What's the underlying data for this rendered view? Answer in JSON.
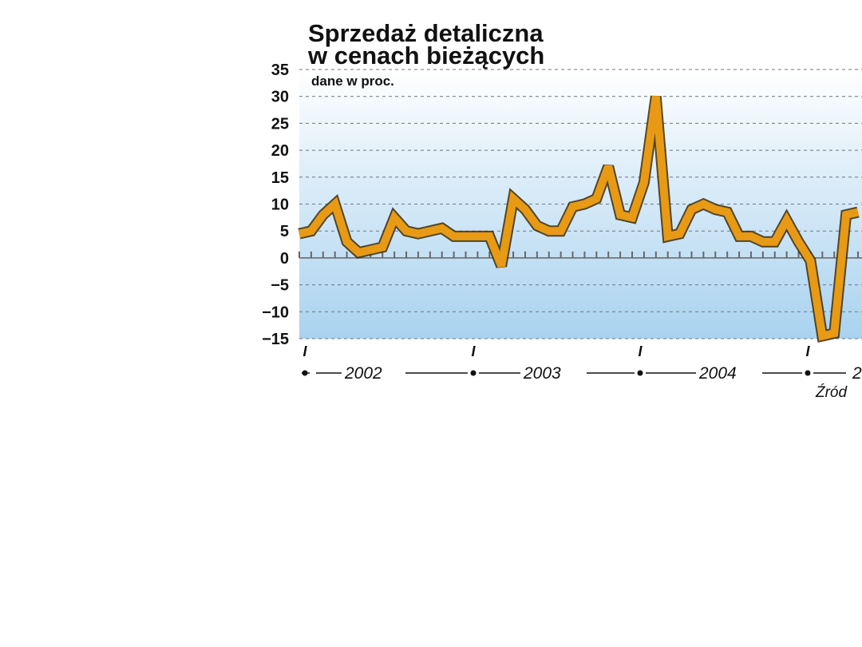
{
  "chart_data": {
    "type": "line",
    "title": [
      "Sprzedaż detaliczna",
      "w cenach bieżących"
    ],
    "subtitle": "dane w proc.",
    "ylim": [
      -15,
      35
    ],
    "yticks": [
      "35",
      "30",
      "25",
      "20",
      "15",
      "10",
      "5",
      "0",
      "−5",
      "−10",
      "−15"
    ],
    "ytick_values": [
      35,
      30,
      25,
      20,
      15,
      10,
      5,
      0,
      -5,
      -10,
      -15
    ],
    "grid": true,
    "year_marker": "I",
    "years": [
      "2002",
      "2003",
      "2004",
      "2"
    ],
    "source": "Źród",
    "series": [
      {
        "values": [
          4.5,
          5,
          8,
          10,
          3,
          1,
          1.5,
          2,
          7.5,
          5,
          4.5,
          5,
          5.5,
          4,
          4,
          4,
          4,
          -1.5,
          11,
          9,
          6,
          5,
          5,
          9.5,
          10,
          11,
          17,
          8,
          7.5,
          14,
          30,
          4,
          4.5,
          9,
          10,
          9,
          8.5,
          4,
          4,
          3,
          3,
          7,
          3,
          -0.5,
          -14.5,
          -14,
          8,
          8.5
        ]
      }
    ],
    "colors": {
      "line": "#e89a14",
      "line_shadow": "#3a2a08",
      "gradient_top": "#ffffff",
      "gradient_bottom": "#a9d2ef"
    }
  }
}
